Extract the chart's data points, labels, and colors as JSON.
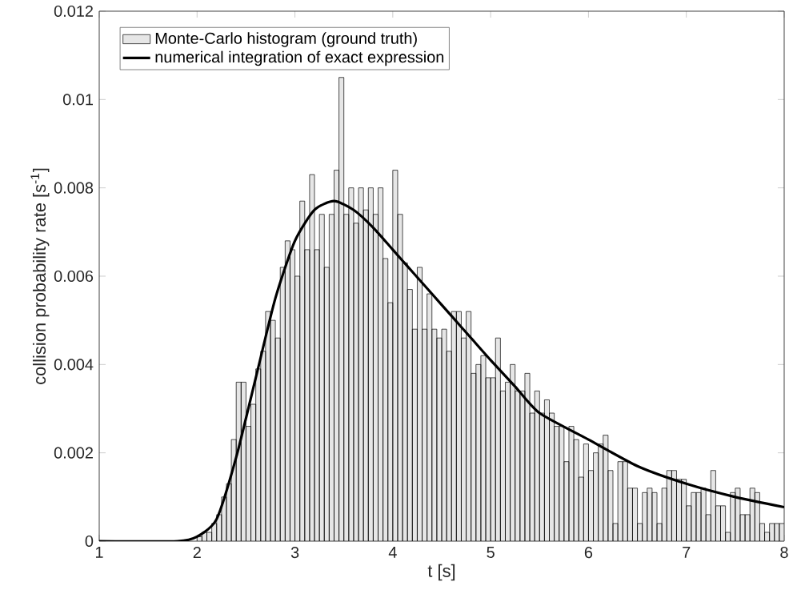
{
  "chart_data": {
    "type": "histogram",
    "xlabel": "t [s]",
    "ylabel": "collision probability rate [s$^{-1}$]",
    "xlim": [
      1,
      8
    ],
    "ylim": [
      0,
      0.012
    ],
    "xticks": [
      1,
      2,
      3,
      4,
      5,
      6,
      7,
      8
    ],
    "yticks": [
      0,
      0.002,
      0.004,
      0.006,
      0.008,
      0.01,
      0.012
    ],
    "grid": false,
    "legend": "top left",
    "series": [
      {
        "name": "Monte-Carlo histogram (ground truth)",
        "color": "#e6e6e6",
        "bins": [
          2.0,
          2.05,
          2.1,
          2.15,
          2.2,
          2.25,
          2.3,
          2.35,
          2.4,
          2.45,
          2.5,
          2.55,
          2.6,
          2.65,
          2.7,
          2.75,
          2.8,
          2.85,
          2.9,
          2.95,
          3.0,
          3.05,
          3.1,
          3.15,
          3.2,
          3.25,
          3.3,
          3.35,
          3.4,
          3.45,
          3.5,
          3.55,
          3.6,
          3.65,
          3.7,
          3.75,
          3.8,
          3.85,
          3.9,
          3.95,
          4.0,
          4.05,
          4.1,
          4.15,
          4.2,
          4.25,
          4.3,
          4.35,
          4.4,
          4.45,
          4.5,
          4.55,
          4.6,
          4.65,
          4.7,
          4.75,
          4.8,
          4.85,
          4.9,
          4.95,
          5.0,
          5.05,
          5.1,
          5.15,
          5.2,
          5.25,
          5.3,
          5.35,
          5.4,
          5.45,
          5.5,
          5.55,
          5.6,
          5.65,
          5.7,
          5.75,
          5.8,
          5.85,
          5.9,
          5.95,
          6.0,
          6.05,
          6.1,
          6.15,
          6.2,
          6.25,
          6.3,
          6.35,
          6.4,
          6.45,
          6.5,
          6.55,
          6.6,
          6.65,
          6.7,
          6.75,
          6.8,
          6.85,
          6.9,
          6.95,
          7.0,
          7.05,
          7.1,
          7.15,
          7.2,
          7.25,
          7.3,
          7.35,
          7.4,
          7.45,
          7.5,
          7.55,
          7.6,
          7.65,
          7.7,
          7.75,
          7.8,
          7.85,
          7.9,
          7.95,
          8.0
        ],
        "values": [
          0.0001,
          0.0002,
          0.0002,
          0.0004,
          0.0006,
          0.001,
          0.0013,
          0.0023,
          0.0036,
          0.0036,
          0.0026,
          0.0031,
          0.0039,
          0.0043,
          0.0052,
          0.005,
          0.0046,
          0.0062,
          0.0068,
          0.0066,
          0.006,
          0.0077,
          0.0066,
          0.0083,
          0.0066,
          0.0074,
          0.0062,
          0.0074,
          0.0084,
          0.0105,
          0.0074,
          0.008,
          0.0072,
          0.008,
          0.0075,
          0.008,
          0.0074,
          0.008,
          0.0064,
          0.0054,
          0.0084,
          0.0074,
          0.0063,
          0.0057,
          0.0048,
          0.0062,
          0.0048,
          0.0056,
          0.0048,
          0.0046,
          0.0048,
          0.0043,
          0.0052,
          0.0052,
          0.0046,
          0.0052,
          0.0038,
          0.004,
          0.0042,
          0.0037,
          0.0037,
          0.0046,
          0.0034,
          0.0036,
          0.004,
          0.0034,
          0.0034,
          0.0038,
          0.0029,
          0.0034,
          0.0029,
          0.0032,
          0.0029,
          0.0026,
          0.0026,
          0.0018,
          0.0026,
          0.0023,
          0.00145,
          0.0022,
          0.0016,
          0.002,
          0.0022,
          0.0024,
          0.0016,
          0.0004,
          0.0018,
          0.0018,
          0.0012,
          0.0012,
          0.0004,
          0.0011,
          0.0012,
          0.0011,
          0.0004,
          0.0012,
          0.0016,
          0.0016,
          0.0014,
          0.0014,
          0.0008,
          0.0011,
          0.0011,
          0.0012,
          0.0006,
          0.0016,
          0.0008,
          0.0008,
          0.0002,
          0.0011,
          0.0012,
          0.0006,
          0.0006,
          0.0012,
          0.0011,
          0.0004,
          0.0002,
          0.0004,
          0.0004,
          0.0004
        ]
      },
      {
        "name": "numerical integration of exact expression",
        "type": "line",
        "color": "#000000",
        "x": [
          1,
          1.8,
          2.0,
          2.2,
          2.4,
          2.6,
          2.8,
          3.0,
          3.2,
          3.4,
          3.6,
          3.8,
          4.0,
          4.2,
          4.4,
          4.6,
          4.8,
          5.0,
          5.25,
          5.5,
          6.0,
          6.5,
          7.0,
          7.5,
          8.0
        ],
        "values": [
          0,
          0,
          0.0001,
          0.0005,
          0.0019,
          0.0037,
          0.0055,
          0.0068,
          0.0075,
          0.0077,
          0.0075,
          0.0071,
          0.0066,
          0.0061,
          0.0056,
          0.0051,
          0.0046,
          0.0041,
          0.0035,
          0.0029,
          0.0023,
          0.0017,
          0.0013,
          0.001,
          0.00077
        ]
      }
    ]
  }
}
